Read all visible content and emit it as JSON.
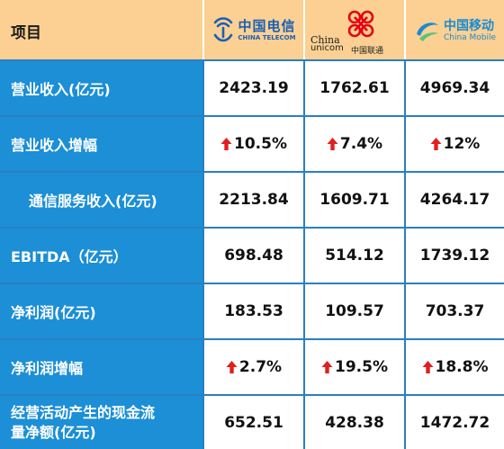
{
  "header": {
    "item_label": "项目",
    "telecom": {
      "name_cn": "中国电信",
      "name_en": "CHINA TELECOM",
      "color": "#1a5fb4"
    },
    "unicom": {
      "name_china": "China",
      "name_unicom": "unicom",
      "name_cn": "中国联通",
      "color": "#e60012"
    },
    "mobile": {
      "name_cn": "中国移动",
      "name_en": "China Mobile",
      "color": "#1b8bd1"
    }
  },
  "colors": {
    "header_bg": "#fbd092",
    "label_bg": "#1c8fd6",
    "arrow": "#e02020"
  },
  "rows": [
    {
      "label": "营业收入(亿元)",
      "telecom": "2423.19",
      "unicom": "1762.61",
      "mobile": "4969.34"
    },
    {
      "label": "营业收入增幅",
      "telecom": "10.5%",
      "unicom": "7.4%",
      "mobile": "12%"
    },
    {
      "label": "通信服务收入(亿元)",
      "telecom": "2213.84",
      "unicom": "1609.71",
      "mobile": "4264.17"
    },
    {
      "label": "EBITDA（亿元）",
      "telecom": "698.48",
      "unicom": "514.12",
      "mobile": "1739.12"
    },
    {
      "label": "净利润(亿元)",
      "telecom": "183.53",
      "unicom": "109.57",
      "mobile": "703.37"
    },
    {
      "label": "净利润增幅",
      "telecom": "2.7%",
      "unicom": "19.5%",
      "mobile": "18.8%"
    },
    {
      "label_line1": "经营活动产生的现金流",
      "label_line2": "量净额(亿元)",
      "telecom": "652.51",
      "unicom": "428.38",
      "mobile": "1472.72"
    }
  ]
}
